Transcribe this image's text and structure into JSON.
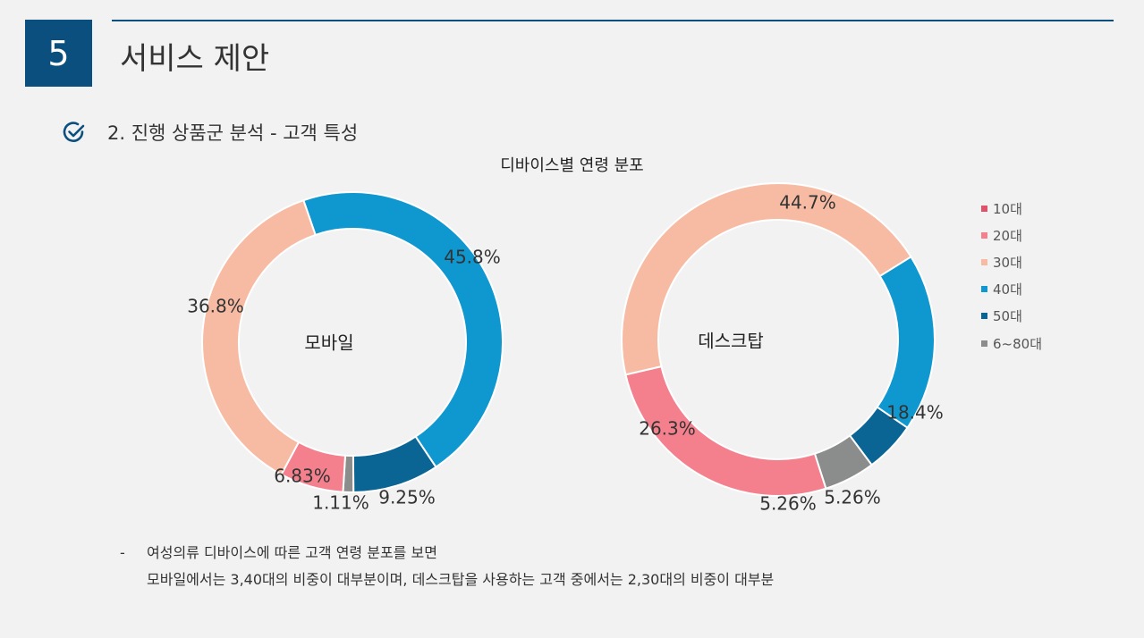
{
  "header": {
    "section_number": "5",
    "title": "서비스 제안"
  },
  "subtitle": "2. 진행 상품군 분석 - 고객 특성",
  "chart_data": {
    "type": "donut",
    "title": "디바이스별 연령 분포",
    "legend": {
      "position": "right",
      "items": [
        {
          "label": "10대",
          "color": "#e0516a"
        },
        {
          "label": "20대",
          "color": "#f4808d"
        },
        {
          "label": "30대",
          "color": "#f7bba3"
        },
        {
          "label": "40대",
          "color": "#0f97d0"
        },
        {
          "label": "50대",
          "color": "#0a6595"
        },
        {
          "label": "6~80대",
          "color": "#8a8d8b"
        }
      ]
    },
    "charts": [
      {
        "name": "모바일",
        "slices": [
          {
            "category": "40대",
            "value": 45.8,
            "label": "45.8%",
            "color": "#0f97d0"
          },
          {
            "category": "50대",
            "value": 9.25,
            "label": "9.25%",
            "color": "#0a6595"
          },
          {
            "category": "6~80대",
            "value": 1.11,
            "label": "1.11%",
            "color": "#8a8d8b"
          },
          {
            "category": "20대",
            "value": 6.83,
            "label": "6.83%",
            "color": "#f4808d"
          },
          {
            "category": "30대",
            "value": 36.8,
            "label": "36.8%",
            "color": "#f7bba3"
          }
        ]
      },
      {
        "name": "데스크탑",
        "slices": [
          {
            "category": "30대",
            "value": 44.7,
            "label": "44.7%",
            "color": "#f7bba3"
          },
          {
            "category": "40대",
            "value": 18.4,
            "label": "18.4%",
            "color": "#0f97d0"
          },
          {
            "category": "50대",
            "value": 5.26,
            "label": "5.26%",
            "color": "#0a6595"
          },
          {
            "category": "6~80대",
            "value": 5.26,
            "label": "5.26%",
            "color": "#8a8d8b"
          },
          {
            "category": "20대",
            "value": 26.3,
            "label": "26.3%",
            "color": "#f4808d"
          }
        ]
      }
    ]
  },
  "note": {
    "bullet": "-",
    "line1": "여성의류 디바이스에 따른 고객 연령 분포를 보면",
    "line2": "모바일에서는 3,40대의 비중이 대부분이며, 데스크탑을 사용하는 고객 중에서는 2,30대의 비중이 대부분"
  }
}
